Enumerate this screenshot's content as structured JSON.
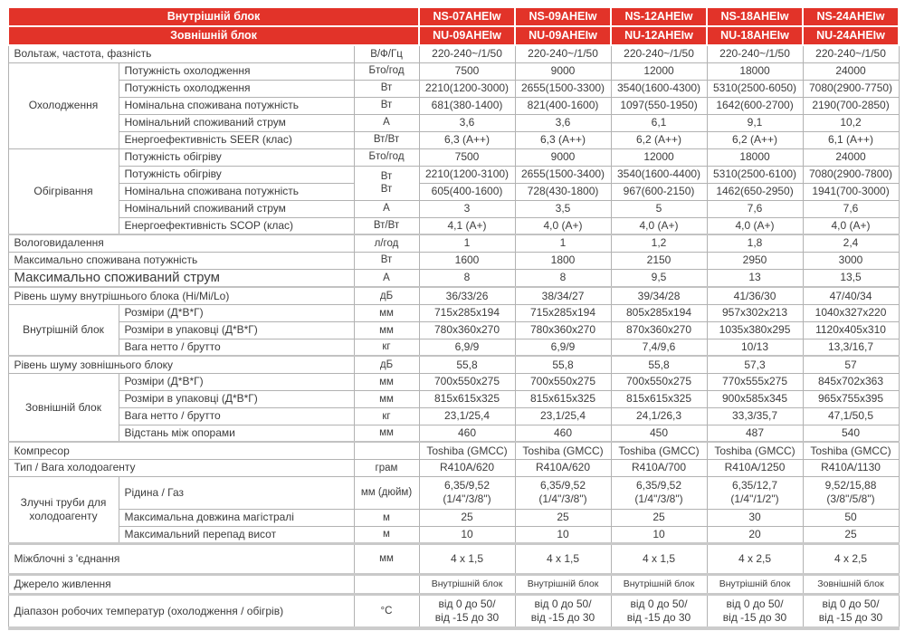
{
  "meta": {
    "accent_red": "#e23329",
    "header_text_color": "#ffffff",
    "border_gray": "#b2b2b2",
    "body_text_color": "#3c3c3c"
  },
  "header": {
    "indoor_label": "Внутрішній блок",
    "outdoor_label": "Зовнішній блок",
    "indoor_models": [
      "NS-07AHEIw",
      "NS-09AHEIw",
      "NS-12AHEIw",
      "NS-18AHEIw",
      "NS-24AHEIw"
    ],
    "outdoor_models": [
      "NU-09AHEIw",
      "NU-09AHEIw",
      "NU-12AHEIw",
      "NU-18AHEIw",
      "NU-24AHEIw"
    ]
  },
  "specs": {
    "voltage": {
      "label": "Вольтаж, частота, фазність",
      "unit": "В/Ф/Гц",
      "values": [
        "220-240~/1/50",
        "220-240~/1/50",
        "220-240~/1/50",
        "220-240~/1/50",
        "220-240~/1/50"
      ]
    },
    "cooling": {
      "group": "Охолодження",
      "rows": [
        {
          "label": "Потужність охолодження",
          "unit": "Бто/год",
          "values": [
            "7500",
            "9000",
            "12000",
            "18000",
            "24000"
          ]
        },
        {
          "label": "Потужність охолодження",
          "unit": "Вт",
          "values": [
            "2210(1200-3000)",
            "2655(1500-3300)",
            "3540(1600-4300)",
            "5310(2500-6050)",
            "7080(2900-7750)"
          ]
        },
        {
          "label": "Номінальна споживана потужність",
          "unit": "Вт",
          "values": [
            "681(380-1400)",
            "821(400-1600)",
            "1097(550-1950)",
            "1642(600-2700)",
            "2190(700-2850)"
          ]
        },
        {
          "label": "Номінальний споживаний струм",
          "unit": "А",
          "values": [
            "3,6",
            "3,6",
            "6,1",
            "9,1",
            "10,2"
          ]
        },
        {
          "label": "Енергоефективність  SEER (клас)",
          "unit": "Вт/Вт",
          "values": [
            "6,3 (A++)",
            "6,3 (A++)",
            "6,2 (A++)",
            "6,2 (A++)",
            "6,1 (A++)"
          ]
        }
      ]
    },
    "heating": {
      "group": "Обігрівання",
      "rows": [
        {
          "label": "Потужність обігріву",
          "unit": "Бто/год",
          "values": [
            "7500",
            "9000",
            "12000",
            "18000",
            "24000"
          ]
        },
        {
          "label": "Потужність обігріву",
          "unit": "Вт\nВт",
          "values": [
            "2210(1200-3100)",
            "2655(1500-3400)",
            "3540(1600-4400)",
            "5310(2500-6100)",
            "7080(2900-7800)"
          ]
        },
        {
          "label": "Номінальна споживана потужність",
          "values": [
            "605(400-1600)",
            "728(430-1800)",
            "967(600-2150)",
            "1462(650-2950)",
            "1941(700-3000)"
          ]
        },
        {
          "label": "Номінальний споживаний струм",
          "unit": "А",
          "values": [
            "3",
            "3,5",
            "5",
            "7,6",
            "7,6"
          ]
        },
        {
          "label": "Енергоефективність  SCOP (клас)",
          "unit": "Вт/Вт",
          "values": [
            "4,1 (A+)",
            "4,0 (A+)",
            "4,0 (A+)",
            "4,0 (A+)",
            "4,0 (A+)"
          ]
        }
      ]
    },
    "moisture": {
      "label": "Вологовидалення",
      "unit": "л/год",
      "values": [
        "1",
        "1",
        "1,2",
        "1,8",
        "2,4"
      ]
    },
    "max_power": {
      "label": "Максимально споживана потужність",
      "unit": "Вт",
      "values": [
        "1600",
        "1800",
        "2150",
        "2950",
        "3000"
      ]
    },
    "max_current": {
      "label": "Максимально споживаний струм",
      "unit": "А",
      "values": [
        "8",
        "8",
        "9,5",
        "13",
        "13,5"
      ]
    },
    "indoor_noise": {
      "label": "Рівень шуму внутрішнього блока  (Hi/Mi/Lo)",
      "unit": "дБ",
      "values": [
        "36/33/26",
        "38/34/27",
        "39/34/28",
        "41/36/30",
        "47/40/34"
      ]
    },
    "indoor_unit": {
      "group": "Внутрішній блок",
      "rows": [
        {
          "label": "Розміри (Д*В*Г)",
          "unit": "мм",
          "values": [
            "715x285x194",
            "715x285x194",
            "805x285x194",
            "957x302x213",
            "1040x327x220"
          ]
        },
        {
          "label": "Розміри в упаковці  (Д*В*Г)",
          "unit": "мм",
          "values": [
            "780x360x270",
            "780x360x270",
            "870x360x270",
            "1035x380x295",
            "1120x405x310"
          ]
        },
        {
          "label": "Вага нетто  / брутто",
          "unit": "кг",
          "values": [
            "6,9/9",
            "6,9/9",
            "7,4/9,6",
            "10/13",
            "13,3/16,7"
          ]
        }
      ]
    },
    "outdoor_noise": {
      "label": "Рівень шуму зовнішнього блоку",
      "unit": "дБ",
      "values": [
        "55,8",
        "55,8",
        "55,8",
        "57,3",
        "57"
      ]
    },
    "outdoor_unit": {
      "group": "Зовнішній блок",
      "rows": [
        {
          "label": "Розміри (Д*В*Г)",
          "unit": "мм",
          "values": [
            "700x550x275",
            "700x550x275",
            "700x550x275",
            "770x555x275",
            "845x702x363"
          ]
        },
        {
          "label": "Розміри в упаковці  (Д*В*Г)",
          "unit": "мм",
          "values": [
            "815x615x325",
            "815x615x325",
            "815x615x325",
            "900x585x345",
            "965x755x395"
          ]
        },
        {
          "label": "Вага нетто  / брутто",
          "unit": "кг",
          "values": [
            "23,1/25,4",
            "23,1/25,4",
            "24,1/26,3",
            "33,3/35,7",
            "47,1/50,5"
          ]
        },
        {
          "label": "Відстань між опорами",
          "unit": "мм",
          "values": [
            "460",
            "460",
            "450",
            "487",
            "540"
          ]
        }
      ]
    },
    "compressor": {
      "label": "Компресор",
      "unit": "",
      "values": [
        "Toshiba (GMCC)",
        "Toshiba (GMCC)",
        "Toshiba (GMCC)",
        "Toshiba (GMCC)",
        "Toshiba (GMCC)"
      ]
    },
    "refrigerant": {
      "label": "Тип / Вага холодоагенту",
      "unit": "грам",
      "values": [
        "R410A/620",
        "R410A/620",
        "R410A/700",
        "R410A/1250",
        "R410A/1130"
      ]
    },
    "pipes": {
      "group": "Злучні труби для холодоагенту",
      "rows": [
        {
          "label": "Рідина / Газ",
          "unit": "мм (дюйм)",
          "values": [
            "6,35/9,52\n(1/4\"/3/8\")",
            "6,35/9,52\n(1/4\"/3/8\")",
            "6,35/9,52\n(1/4\"/3/8\")",
            "6,35/12,7\n(1/4\"/1/2\")",
            "9,52/15,88\n(3/8\"/5/8\")"
          ]
        },
        {
          "label": "Максимальна довжина магістралі",
          "unit": "м",
          "values": [
            "25",
            "25",
            "25",
            "30",
            "50"
          ]
        },
        {
          "label": "Максимальний перепад висот",
          "unit": "м",
          "values": [
            "10",
            "10",
            "10",
            "20",
            "25"
          ]
        }
      ]
    },
    "interblock": {
      "label": "Міжблочні з 'єднання",
      "unit": "мм",
      "values": [
        "4 х 1,5",
        "4 х 1,5",
        "4 х 1,5",
        "4 х 2,5",
        "4 х 2,5"
      ]
    },
    "power_source": {
      "label": "Джерело живлення",
      "unit": "",
      "values": [
        "Внутрішній блок",
        "Внутрішній блок",
        "Внутрішній блок",
        "Внутрішній блок",
        "Зовнішній блок"
      ]
    },
    "temp_range": {
      "label": "Діапазон робочих температур   (охолодження  / обігрів)",
      "unit": "°С",
      "values": [
        "від 0 до 50/\nвід -15 до 30",
        "від 0 до 50/\nвід -15 до 30",
        "від 0 до 50/\nвід -15 до 30",
        "від 0 до 50/\nвід -15 до 30",
        "від 0 до 50/\nвід -15 до 30"
      ]
    }
  }
}
